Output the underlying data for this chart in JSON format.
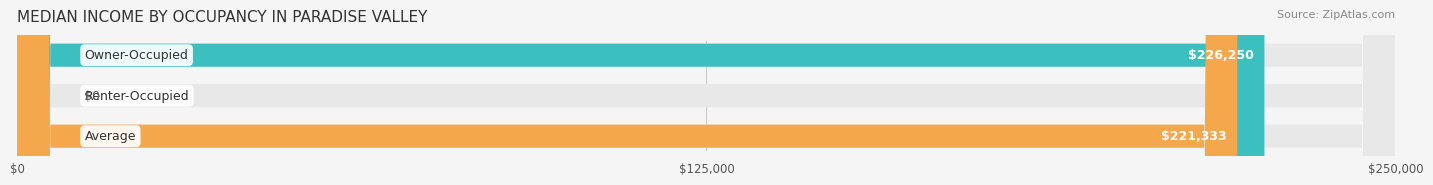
{
  "title": "MEDIAN INCOME BY OCCUPANCY IN PARADISE VALLEY",
  "source": "Source: ZipAtlas.com",
  "categories": [
    "Owner-Occupied",
    "Renter-Occupied",
    "Average"
  ],
  "values": [
    226250,
    0,
    221333
  ],
  "bar_colors": [
    "#3bbfbf",
    "#c9a8d4",
    "#f5a84b"
  ],
  "label_colors": [
    "#ffffff",
    "#555555",
    "#ffffff"
  ],
  "value_labels": [
    "$226,250",
    "$0",
    "$221,333"
  ],
  "x_ticks": [
    0,
    125000,
    250000
  ],
  "x_tick_labels": [
    "$0",
    "$125,000",
    "$250,000"
  ],
  "xlim": [
    0,
    250000
  ],
  "background_color": "#f5f5f5",
  "bar_bg_color": "#e8e8e8",
  "title_fontsize": 11,
  "source_fontsize": 8,
  "label_fontsize": 9,
  "value_fontsize": 9
}
